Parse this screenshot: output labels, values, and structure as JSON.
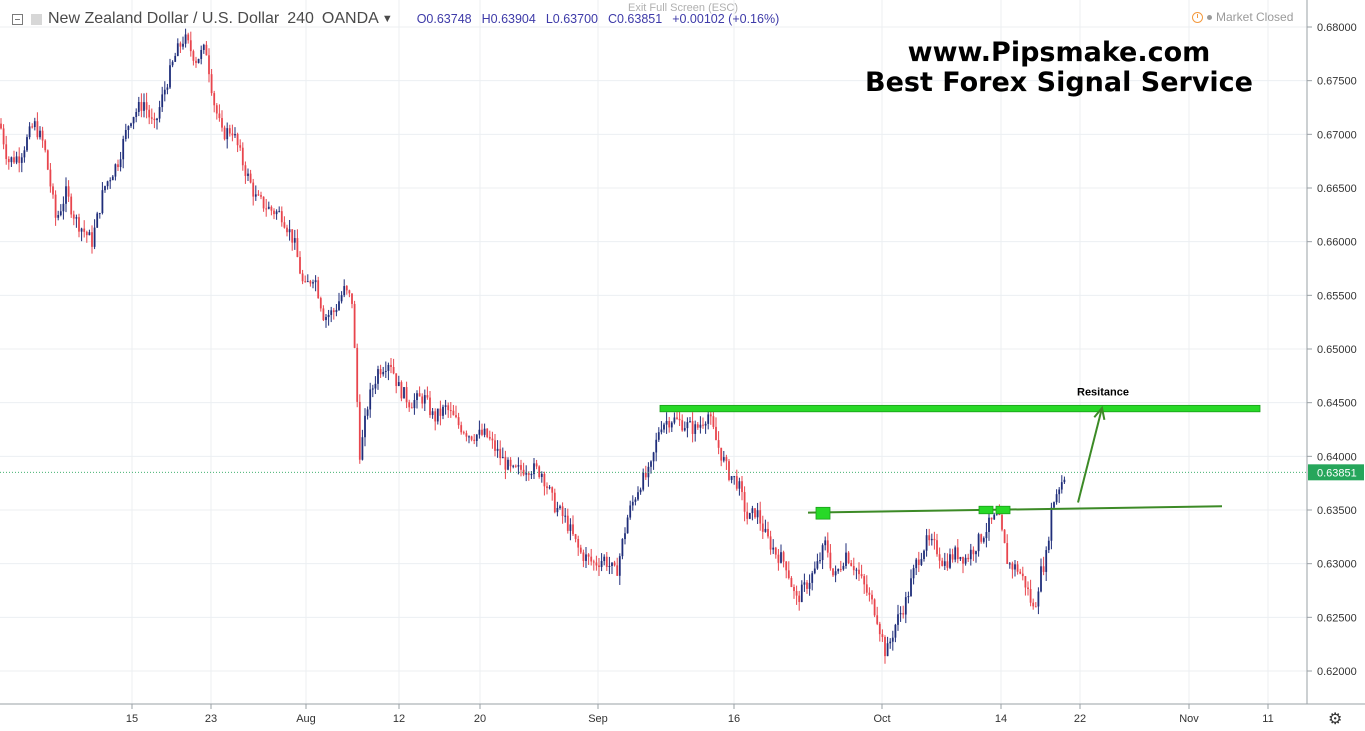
{
  "header": {
    "symbol_title": "New Zealand Dollar / U.S. Dollar",
    "interval": "240",
    "exchange": "OANDA",
    "open": "O0.63748",
    "high": "H0.63904",
    "low": "L0.63700",
    "close": "C0.63851",
    "change": "+0.00102 (+0.16%)",
    "exit_fullscreen": "Exit Full Screen (ESC)",
    "market_status": "Market Closed"
  },
  "watermark": {
    "line1": "www.Pipsmake.com",
    "line2": "Best Forex Signal Service"
  },
  "colors": {
    "up_candle": "#1f2d7a",
    "down_candle": "#e8454d",
    "resistance": "#27d927",
    "trend": "#3c8a26",
    "price_label_bg": "#26a65b",
    "grid": "#eceff2"
  },
  "chart_data": {
    "type": "candlestick",
    "timeframe": "240",
    "ylim": [
      0.6175,
      0.6815
    ],
    "y_ticks": [
      "0.68000",
      "0.67500",
      "0.67000",
      "0.66500",
      "0.66000",
      "0.65500",
      "0.65000",
      "0.64500",
      "0.64000",
      "0.63500",
      "0.63000",
      "0.62500",
      "0.62000"
    ],
    "x_ticks": [
      "15",
      "23",
      "Aug",
      "12",
      "20",
      "Sep",
      "16",
      "Oct",
      "14",
      "22",
      "Nov",
      "11"
    ],
    "last_price": "0.63851",
    "path_points": [
      [
        0,
        0.671
      ],
      [
        8,
        0.6675
      ],
      [
        20,
        0.668
      ],
      [
        34,
        0.671
      ],
      [
        44,
        0.669
      ],
      [
        56,
        0.662
      ],
      [
        66,
        0.6645
      ],
      [
        76,
        0.662
      ],
      [
        92,
        0.66
      ],
      [
        104,
        0.665
      ],
      [
        118,
        0.6675
      ],
      [
        130,
        0.6715
      ],
      [
        144,
        0.673
      ],
      [
        154,
        0.6705
      ],
      [
        164,
        0.674
      ],
      [
        176,
        0.6775
      ],
      [
        184,
        0.679
      ],
      [
        196,
        0.677
      ],
      [
        206,
        0.678
      ],
      [
        214,
        0.673
      ],
      [
        222,
        0.67
      ],
      [
        232,
        0.6705
      ],
      [
        244,
        0.667
      ],
      [
        256,
        0.664
      ],
      [
        270,
        0.663
      ],
      [
        282,
        0.6625
      ],
      [
        294,
        0.66
      ],
      [
        304,
        0.6555
      ],
      [
        314,
        0.657
      ],
      [
        324,
        0.653
      ],
      [
        334,
        0.6535
      ],
      [
        344,
        0.6555
      ],
      [
        352,
        0.6545
      ],
      [
        360,
        0.64
      ],
      [
        368,
        0.645
      ],
      [
        378,
        0.648
      ],
      [
        390,
        0.649
      ],
      [
        398,
        0.6465
      ],
      [
        410,
        0.645
      ],
      [
        424,
        0.6455
      ],
      [
        434,
        0.6435
      ],
      [
        446,
        0.6445
      ],
      [
        458,
        0.643
      ],
      [
        470,
        0.642
      ],
      [
        486,
        0.642
      ],
      [
        500,
        0.64
      ],
      [
        512,
        0.6385
      ],
      [
        528,
        0.639
      ],
      [
        542,
        0.6385
      ],
      [
        554,
        0.6355
      ],
      [
        566,
        0.634
      ],
      [
        580,
        0.631
      ],
      [
        594,
        0.63
      ],
      [
        604,
        0.6305
      ],
      [
        616,
        0.629
      ],
      [
        628,
        0.6345
      ],
      [
        640,
        0.6375
      ],
      [
        650,
        0.6385
      ],
      [
        660,
        0.643
      ],
      [
        672,
        0.6435
      ],
      [
        684,
        0.643
      ],
      [
        696,
        0.6425
      ],
      [
        708,
        0.644
      ],
      [
        716,
        0.6415
      ],
      [
        728,
        0.6385
      ],
      [
        738,
        0.6375
      ],
      [
        748,
        0.634
      ],
      [
        756,
        0.635
      ],
      [
        766,
        0.6325
      ],
      [
        776,
        0.631
      ],
      [
        786,
        0.63
      ],
      [
        796,
        0.6265
      ],
      [
        806,
        0.628
      ],
      [
        816,
        0.6295
      ],
      [
        826,
        0.632
      ],
      [
        834,
        0.6285
      ],
      [
        846,
        0.631
      ],
      [
        856,
        0.6295
      ],
      [
        866,
        0.6275
      ],
      [
        876,
        0.6255
      ],
      [
        886,
        0.6215
      ],
      [
        896,
        0.6245
      ],
      [
        906,
        0.6265
      ],
      [
        916,
        0.63
      ],
      [
        926,
        0.632
      ],
      [
        936,
        0.6315
      ],
      [
        944,
        0.63
      ],
      [
        956,
        0.631
      ],
      [
        966,
        0.6305
      ],
      [
        978,
        0.632
      ],
      [
        988,
        0.6335
      ],
      [
        998,
        0.6345
      ],
      [
        1008,
        0.63
      ],
      [
        1018,
        0.6295
      ],
      [
        1026,
        0.628
      ],
      [
        1034,
        0.6255
      ],
      [
        1040,
        0.629
      ],
      [
        1046,
        0.6305
      ],
      [
        1052,
        0.6355
      ],
      [
        1058,
        0.637
      ],
      [
        1066,
        0.6385
      ]
    ],
    "annotations": {
      "resistance_label": "Resitance",
      "resistance_zone": {
        "price_top": 0.64475,
        "price_bottom": 0.64415,
        "from_x": 660,
        "to_x": 1260
      },
      "trendline": {
        "from": [
          808,
          0.63475
        ],
        "to": [
          1222,
          0.63535
        ]
      },
      "support_boxes": [
        {
          "x": 816,
          "price_top": 0.63525,
          "price_bottom": 0.63415
        },
        {
          "x": 979,
          "price_top": 0.63535,
          "price_bottom": 0.63465
        },
        {
          "x": 996,
          "price_top": 0.63535,
          "price_bottom": 0.63465
        }
      ],
      "arrow": {
        "from": [
          1078,
          0.6357
        ],
        "to": [
          1102,
          0.6445
        ]
      }
    }
  }
}
